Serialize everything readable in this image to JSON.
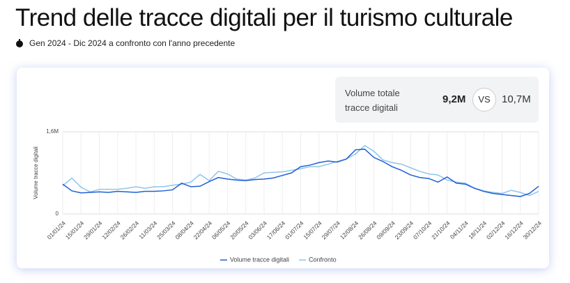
{
  "header": {
    "title": "Trend delle tracce digitali per il turismo culturale",
    "subtitle": "Gen 2024 - Dic 2024 a confronto con l'anno precedente"
  },
  "summary": {
    "label": "Volume totale tracce digitali",
    "current": "9,2M",
    "vs": "VS",
    "previous": "10,7M"
  },
  "chart_data": {
    "type": "line",
    "ylabel": "Volume tracce digitali",
    "categories": [
      "01/01/24",
      null,
      "15/01/24",
      null,
      "29/01/24",
      null,
      "12/02/24",
      null,
      "26/02/24",
      null,
      "11/03/24",
      null,
      "25/03/24",
      null,
      "08/04/24",
      null,
      "22/04/24",
      null,
      "06/05/24",
      null,
      "20/05/24",
      null,
      "03/06/24",
      null,
      "17/06/24",
      null,
      "01/07/24",
      null,
      "15/07/24",
      null,
      "29/07/24",
      null,
      "12/08/24",
      null,
      "26/08/24",
      null,
      "09/09/24",
      null,
      "23/09/24",
      null,
      "07/10/24",
      null,
      "21/10/24",
      null,
      "04/11/24",
      null,
      "18/11/24",
      null,
      "02/12/24",
      null,
      "16/12/24",
      null,
      "30/12/24"
    ],
    "series": [
      {
        "name": "Volume tracce digitali",
        "color": "#1f5fd6",
        "values": [
          580000,
          450000,
          410000,
          420000,
          430000,
          420000,
          440000,
          430000,
          420000,
          440000,
          440000,
          450000,
          470000,
          600000,
          530000,
          540000,
          630000,
          710000,
          680000,
          660000,
          650000,
          670000,
          680000,
          700000,
          750000,
          800000,
          920000,
          950000,
          1000000,
          1030000,
          1010000,
          1070000,
          1250000,
          1260000,
          1100000,
          1020000,
          920000,
          850000,
          760000,
          710000,
          690000,
          620000,
          720000,
          600000,
          580000,
          500000,
          440000,
          400000,
          380000,
          360000,
          340000,
          400000,
          540000
        ]
      },
      {
        "name": "Confronto",
        "color": "#8ec5ec",
        "values": [
          550000,
          700000,
          520000,
          430000,
          480000,
          480000,
          480000,
          500000,
          530000,
          500000,
          530000,
          530000,
          560000,
          580000,
          620000,
          770000,
          650000,
          830000,
          780000,
          680000,
          660000,
          700000,
          800000,
          810000,
          820000,
          850000,
          880000,
          920000,
          920000,
          970000,
          1020000,
          1070000,
          1170000,
          1330000,
          1220000,
          1050000,
          1000000,
          970000,
          900000,
          830000,
          780000,
          760000,
          660000,
          620000,
          600000,
          500000,
          450000,
          420000,
          400000,
          460000,
          420000,
          360000,
          440000
        ]
      }
    ],
    "ylim": [
      0,
      1600000
    ],
    "yticks": [
      0,
      {
        "value": 1600000,
        "label": "1,6M"
      }
    ],
    "grid": true,
    "legend": "bottom"
  }
}
